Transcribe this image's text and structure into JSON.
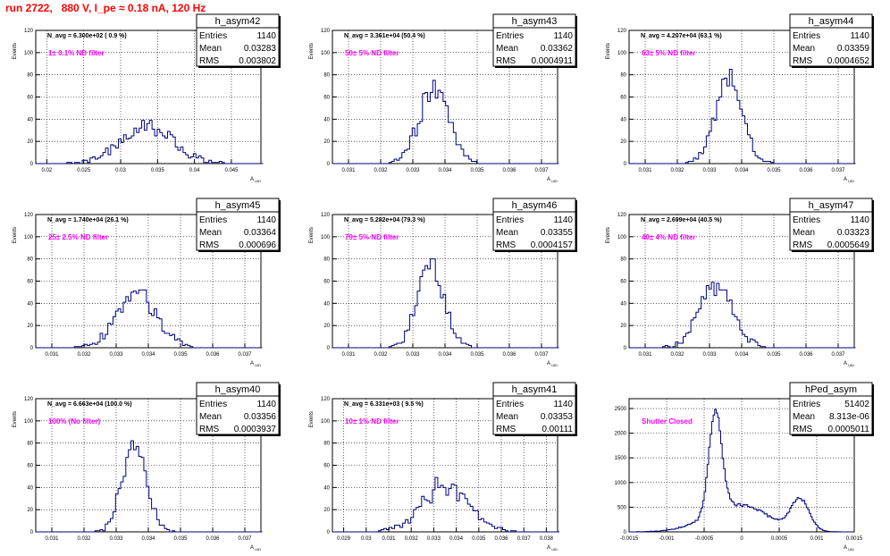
{
  "page_title": "run 2722,   880 V, I_pe ≈ 0.18 nA, 120 Hz",
  "colors": {
    "title": "#ff0000",
    "annotation": "#ff00ff",
    "histogram": "#000080"
  },
  "stats_labels": {
    "entries": "Entries",
    "mean": "Mean",
    "rms": "RMS"
  },
  "chart_data": [
    {
      "type": "histogram",
      "name": "h_asym42",
      "navg_text": "N_avg = 6.300e+02 ( 0.9 %)",
      "annotation": "1± 0.1% ND filter",
      "ylabel": "Events",
      "xlabel": "A_uid",
      "ylim": [
        0,
        120
      ],
      "yticks": [
        "0",
        "20",
        "40",
        "60",
        "80",
        "100",
        "120"
      ],
      "xlim": [
        0.0185,
        0.049
      ],
      "xticks": [
        "0.02",
        "0.025",
        "0.03",
        "0.035",
        "0.04",
        "0.045"
      ],
      "grid": true,
      "stats": {
        "entries": "1140",
        "mean": "0.03283",
        "rms": "0.003802"
      },
      "dist": {
        "components": [
          {
            "mu": 0.0335,
            "sigma": 0.0036,
            "amp": 32
          }
        ],
        "total": 1140,
        "width": 0.00035,
        "seed": 42
      }
    },
    {
      "type": "histogram",
      "name": "h_asym43",
      "navg_text": "N_avg = 3.361e+04 (50.4 %)",
      "annotation": "50± 5% ND filter",
      "ylabel": "Events",
      "xlabel": "A_uid",
      "ylim": [
        0,
        120
      ],
      "yticks": [
        "0",
        "20",
        "40",
        "60",
        "80",
        "100",
        "120"
      ],
      "xlim": [
        0.0305,
        0.0375
      ],
      "xticks": [
        "0.031",
        "0.032",
        "0.033",
        "0.034",
        "0.035",
        "0.036",
        "0.037"
      ],
      "grid": true,
      "stats": {
        "entries": "1140",
        "mean": "0.03362",
        "rms": "0.0004911"
      },
      "dist": {
        "components": [
          {
            "mu": 0.03365,
            "sigma": 0.00045,
            "amp": 70
          }
        ],
        "total": 1140,
        "width": 8e-05,
        "seed": 43
      }
    },
    {
      "type": "histogram",
      "name": "h_asym44",
      "navg_text": "N_avg = 4.207e+04 (63.1 %)",
      "annotation": "63± 5% ND filter",
      "ylabel": "Events",
      "xlabel": "A_uid",
      "ylim": [
        0,
        120
      ],
      "yticks": [
        "0",
        "20",
        "40",
        "60",
        "80",
        "100",
        "120"
      ],
      "xlim": [
        0.0305,
        0.0375
      ],
      "xticks": [
        "0.031",
        "0.032",
        "0.033",
        "0.034",
        "0.035",
        "0.036",
        "0.037"
      ],
      "grid": true,
      "stats": {
        "entries": "1140",
        "mean": "0.03359",
        "rms": "0.0004652"
      },
      "dist": {
        "components": [
          {
            "mu": 0.0336,
            "sigma": 0.00043,
            "amp": 72
          }
        ],
        "total": 1140,
        "width": 8e-05,
        "seed": 44
      }
    },
    {
      "type": "histogram",
      "name": "h_asym45",
      "navg_text": "N_avg = 1.740e+04 (26.1 %)",
      "annotation": "25± 2.5% ND filter",
      "ylabel": "Events",
      "xlabel": "A_uid",
      "ylim": [
        0,
        120
      ],
      "yticks": [
        "0",
        "20",
        "40",
        "60",
        "80",
        "100",
        "120"
      ],
      "xlim": [
        0.0305,
        0.0375
      ],
      "xticks": [
        "0.031",
        "0.032",
        "0.033",
        "0.034",
        "0.035",
        "0.036",
        "0.037"
      ],
      "grid": true,
      "stats": {
        "entries": "1140",
        "mean": "0.03364",
        "rms": "0.000696"
      },
      "dist": {
        "components": [
          {
            "mu": 0.03364,
            "sigma": 0.00062,
            "amp": 50
          }
        ],
        "total": 1140,
        "width": 8e-05,
        "seed": 45
      }
    },
    {
      "type": "histogram",
      "name": "h_asym46",
      "navg_text": "N_avg = 5.282e+04 (79.3 %)",
      "annotation": "79± 5% ND filter",
      "ylabel": "Events",
      "xlabel": "A_uid",
      "ylim": [
        0,
        120
      ],
      "yticks": [
        "0",
        "20",
        "40",
        "60",
        "80",
        "100",
        "120"
      ],
      "xlim": [
        0.0305,
        0.0375
      ],
      "xticks": [
        "0.031",
        "0.032",
        "0.033",
        "0.034",
        "0.035",
        "0.036",
        "0.037"
      ],
      "grid": true,
      "stats": {
        "entries": "1140",
        "mean": "0.03355",
        "rms": "0.0004157"
      },
      "dist": {
        "components": [
          {
            "mu": 0.03355,
            "sigma": 0.0004,
            "amp": 76
          }
        ],
        "total": 1140,
        "width": 8e-05,
        "seed": 46
      }
    },
    {
      "type": "histogram",
      "name": "h_asym47",
      "navg_text": "N_avg = 2.699e+04 (40.5 %)",
      "annotation": "40± 4% ND filter",
      "ylabel": "Events",
      "xlabel": "A_uid",
      "ylim": [
        0,
        120
      ],
      "yticks": [
        "0",
        "20",
        "40",
        "60",
        "80",
        "100",
        "120"
      ],
      "xlim": [
        0.0305,
        0.0375
      ],
      "xticks": [
        "0.031",
        "0.032",
        "0.033",
        "0.034",
        "0.035",
        "0.036",
        "0.037"
      ],
      "grid": true,
      "stats": {
        "entries": "1140",
        "mean": "0.03323",
        "rms": "0.0005649"
      },
      "dist": {
        "components": [
          {
            "mu": 0.03322,
            "sigma": 0.00052,
            "amp": 58
          }
        ],
        "total": 1140,
        "width": 8e-05,
        "seed": 47
      }
    },
    {
      "type": "histogram",
      "name": "h_asym40",
      "navg_text": "N_avg = 6.663e+04 (100.0 %)",
      "annotation": "100% (No filter)",
      "ylabel": "Events",
      "xlabel": "A_uid",
      "ylim": [
        0,
        120
      ],
      "yticks": [
        "0",
        "20",
        "40",
        "60",
        "80",
        "100",
        "120"
      ],
      "xlim": [
        0.0305,
        0.0375
      ],
      "xticks": [
        "0.031",
        "0.032",
        "0.033",
        "0.034",
        "0.035",
        "0.036",
        "0.037"
      ],
      "grid": true,
      "stats": {
        "entries": "1140",
        "mean": "0.03356",
        "rms": "0.0003937"
      },
      "dist": {
        "components": [
          {
            "mu": 0.03356,
            "sigma": 0.00038,
            "amp": 76
          }
        ],
        "total": 1140,
        "width": 8e-05,
        "seed": 40
      }
    },
    {
      "type": "histogram",
      "name": "h_asym41",
      "navg_text": "N_avg = 6.331e+03 ( 9.5 %)",
      "annotation": "10± 1% ND filter",
      "ylabel": "Events",
      "xlabel": "A_uid",
      "ylim": [
        0,
        120
      ],
      "yticks": [
        "0",
        "20",
        "40",
        "60",
        "80",
        "100",
        "120"
      ],
      "xlim": [
        0.0285,
        0.0385
      ],
      "xticks": [
        "0.029",
        "0.03",
        "0.031",
        "0.032",
        "0.033",
        "0.034",
        "0.035",
        "0.036",
        "0.037",
        "0.038"
      ],
      "grid": true,
      "stats": {
        "entries": "1140",
        "mean": "0.03353",
        "rms": "0.00111"
      },
      "dist": {
        "components": [
          {
            "mu": 0.03353,
            "sigma": 0.00105,
            "amp": 42
          }
        ],
        "total": 1140,
        "width": 0.00012,
        "seed": 41
      }
    },
    {
      "type": "histogram",
      "name": "hPed_asym",
      "navg_text": "",
      "annotation": "Shutter Closed",
      "ylabel": "",
      "xlabel": "A_uid",
      "ylim": [
        0,
        2700
      ],
      "yticks": [
        "0",
        "500",
        "1000",
        "1500",
        "2000",
        "2500"
      ],
      "ytick_values": [
        0,
        500,
        1000,
        1500,
        2000,
        2500
      ],
      "xlim": [
        -0.0015,
        0.0015
      ],
      "xticks": [
        "-0.0015",
        "-0.001",
        "-0.0005",
        "0",
        "0.0005",
        "0.001",
        "0.0015"
      ],
      "xtick_values": [
        -0.0015,
        -0.001,
        -0.0005,
        0,
        0.0005,
        0.001,
        0.0015
      ],
      "grid": true,
      "stats": {
        "entries": "51402",
        "mean": "8.313e-06",
        "rms": "0.0005011"
      },
      "dist": {
        "components": [
          {
            "mu": -0.00035,
            "sigma": 8.5e-05,
            "amp": 2050
          },
          {
            "mu": -5e-05,
            "sigma": 0.0004,
            "amp": 560
          },
          {
            "mu": 0.00078,
            "sigma": 0.00012,
            "amp": 620
          }
        ],
        "total": 51402,
        "width": 2e-05,
        "seed": 99
      }
    }
  ]
}
